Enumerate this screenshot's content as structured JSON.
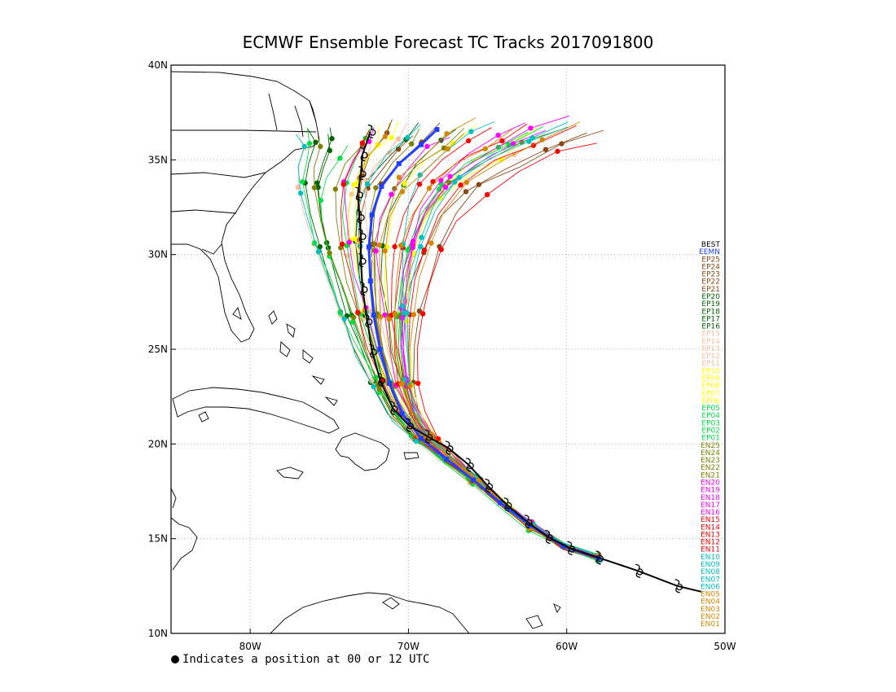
{
  "title": "ECMWF Ensemble Forecast TC Tracks 2017091800",
  "footnote": "Indicates a position at 00 or 12 UTC",
  "map": {
    "lon_range": [
      -85,
      -50
    ],
    "lat_range": [
      10,
      40
    ],
    "lon_ticks": [
      {
        "lon": -80,
        "label": "80W"
      },
      {
        "lon": -70,
        "label": "70W"
      },
      {
        "lon": -60,
        "label": "60W"
      },
      {
        "lon": -50,
        "label": "50W"
      }
    ],
    "lat_ticks": [
      {
        "lat": 10,
        "label": "10N"
      },
      {
        "lat": 15,
        "label": "15N"
      },
      {
        "lat": 20,
        "label": "20N"
      },
      {
        "lat": 25,
        "label": "25N"
      },
      {
        "lat": 30,
        "label": "30N"
      },
      {
        "lat": 35,
        "label": "35N"
      },
      {
        "lat": 40,
        "label": "40N"
      }
    ],
    "grid": true
  },
  "legend": [
    {
      "label": "BEST",
      "color": "#000000"
    },
    {
      "label": "EEMN",
      "color": "#2040ff"
    },
    {
      "label": "EP25",
      "color": "#8b4513"
    },
    {
      "label": "EP24",
      "color": "#8b4513"
    },
    {
      "label": "EP23",
      "color": "#8b4513"
    },
    {
      "label": "EP22",
      "color": "#8b4513"
    },
    {
      "label": "EP21",
      "color": "#8b4513"
    },
    {
      "label": "EP20",
      "color": "#006400"
    },
    {
      "label": "EP19",
      "color": "#006400"
    },
    {
      "label": "EP18",
      "color": "#006400"
    },
    {
      "label": "EP17",
      "color": "#006400"
    },
    {
      "label": "EP16",
      "color": "#006400"
    },
    {
      "label": "EP15",
      "color": "#f4c0a0"
    },
    {
      "label": "EP14",
      "color": "#f4c0a0"
    },
    {
      "label": "EP13",
      "color": "#f4c0a0"
    },
    {
      "label": "EP12",
      "color": "#f4c0a0"
    },
    {
      "label": "EP11",
      "color": "#f4c0a0"
    },
    {
      "label": "EP10",
      "color": "#ffff00"
    },
    {
      "label": "EP09",
      "color": "#ffff00"
    },
    {
      "label": "EP08",
      "color": "#ffff00"
    },
    {
      "label": "EP07",
      "color": "#ffff00"
    },
    {
      "label": "EP06",
      "color": "#ffff00"
    },
    {
      "label": "EP05",
      "color": "#00e040"
    },
    {
      "label": "EP04",
      "color": "#00e040"
    },
    {
      "label": "EP03",
      "color": "#00e040"
    },
    {
      "label": "EP02",
      "color": "#00e040"
    },
    {
      "label": "EP01",
      "color": "#00e040"
    },
    {
      "label": "EN25",
      "color": "#808000"
    },
    {
      "label": "EN24",
      "color": "#808000"
    },
    {
      "label": "EN23",
      "color": "#808000"
    },
    {
      "label": "EN22",
      "color": "#808000"
    },
    {
      "label": "EN21",
      "color": "#808000"
    },
    {
      "label": "EN20",
      "color": "#ff00ff"
    },
    {
      "label": "EN19",
      "color": "#ff00ff"
    },
    {
      "label": "EN18",
      "color": "#ff00ff"
    },
    {
      "label": "EN17",
      "color": "#ff00ff"
    },
    {
      "label": "EN16",
      "color": "#ff00ff"
    },
    {
      "label": "EN15",
      "color": "#ff0000"
    },
    {
      "label": "EN14",
      "color": "#ff0000"
    },
    {
      "label": "EN13",
      "color": "#ff0000"
    },
    {
      "label": "EN12",
      "color": "#ff0000"
    },
    {
      "label": "EN11",
      "color": "#ff0000"
    },
    {
      "label": "EN10",
      "color": "#00c0c0"
    },
    {
      "label": "EN09",
      "color": "#00c0c0"
    },
    {
      "label": "EN08",
      "color": "#00c0c0"
    },
    {
      "label": "EN07",
      "color": "#00c0c0"
    },
    {
      "label": "EN06",
      "color": "#00c0c0"
    },
    {
      "label": "EN05",
      "color": "#d08800"
    },
    {
      "label": "EN04",
      "color": "#d08800"
    },
    {
      "label": "EN03",
      "color": "#d08800"
    },
    {
      "label": "EN02",
      "color": "#d08800"
    },
    {
      "label": "EN01",
      "color": "#d08800"
    }
  ],
  "best_track": [
    [
      -51.5,
      12.2
    ],
    [
      -53,
      12.5
    ],
    [
      -55.5,
      13.3
    ],
    [
      -58,
      14.0
    ],
    [
      -59.8,
      14.5
    ],
    [
      -61.2,
      15.1
    ],
    [
      -62.5,
      15.9
    ],
    [
      -63.8,
      16.8
    ],
    [
      -65.0,
      17.8
    ],
    [
      -66.2,
      18.9
    ],
    [
      -67.5,
      19.8
    ],
    [
      -68.8,
      20.4
    ],
    [
      -70.0,
      21.0
    ],
    [
      -71.0,
      21.9
    ],
    [
      -71.8,
      23.4
    ],
    [
      -72.3,
      24.9
    ],
    [
      -72.6,
      26.5
    ],
    [
      -72.9,
      28.2
    ],
    [
      -73.0,
      29.7
    ],
    [
      -73.0,
      31.0
    ],
    [
      -73.1,
      32.0
    ],
    [
      -73.2,
      33.2
    ],
    [
      -73.0,
      34.3
    ],
    [
      -72.9,
      35.3
    ],
    [
      -72.4,
      36.5
    ]
  ],
  "best_track_markers": [
    [
      -53,
      12.5
    ],
    [
      -55.5,
      13.3
    ],
    [
      -58,
      14.0
    ],
    [
      -59.8,
      14.5
    ],
    [
      -61.2,
      15.1
    ],
    [
      -62.5,
      15.9
    ],
    [
      -63.8,
      16.8
    ],
    [
      -65.0,
      17.8
    ],
    [
      -66.2,
      18.9
    ],
    [
      -67.5,
      19.8
    ],
    [
      -68.8,
      20.4
    ],
    [
      -70.0,
      21.0
    ],
    [
      -71.0,
      21.9
    ],
    [
      -71.8,
      23.4
    ],
    [
      -72.3,
      24.9
    ],
    [
      -72.6,
      26.5
    ],
    [
      -72.9,
      28.2
    ],
    [
      -73.0,
      29.7
    ],
    [
      -73.0,
      31.0
    ],
    [
      -73.1,
      32.0
    ],
    [
      -73.2,
      33.2
    ],
    [
      -73.0,
      34.3
    ],
    [
      -72.9,
      35.3
    ],
    [
      -72.4,
      36.5
    ]
  ],
  "ensemble_mean": [
    [
      -58,
      14.0
    ],
    [
      -60.2,
      14.6
    ],
    [
      -62.3,
      15.7
    ],
    [
      -64.2,
      16.9
    ],
    [
      -65.9,
      18.1
    ],
    [
      -67.6,
      19.2
    ],
    [
      -69.2,
      20.3
    ],
    [
      -70.4,
      21.6
    ],
    [
      -71.2,
      23.2
    ],
    [
      -71.8,
      25.0
    ],
    [
      -72.2,
      26.8
    ],
    [
      -72.4,
      28.6
    ],
    [
      -72.5,
      30.4
    ],
    [
      -72.3,
      32.1
    ],
    [
      -71.7,
      33.6
    ],
    [
      -70.6,
      34.8
    ],
    [
      -69.2,
      35.8
    ],
    [
      -68.2,
      36.6
    ]
  ]
}
